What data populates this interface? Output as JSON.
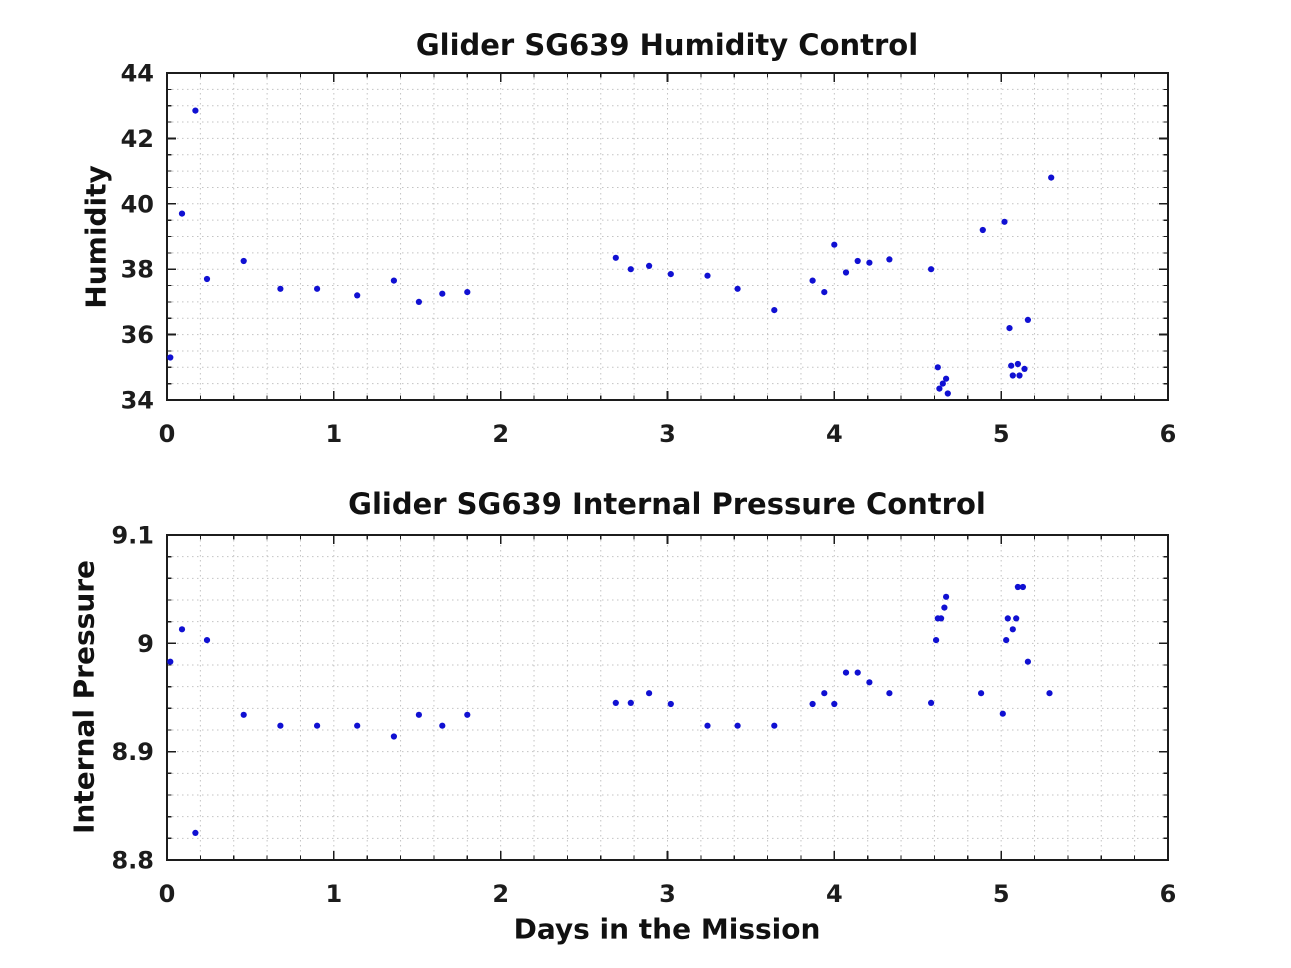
{
  "figure": {
    "background": "#ffffff",
    "axis_color": "#1c1c1c",
    "grid_color": "#c3c3c3",
    "marker_color": "#1010d2"
  },
  "chart_data": [
    {
      "type": "scatter",
      "title": "Glider SG639 Humidity Control",
      "xlabel": "",
      "ylabel": "Humidity",
      "xlim": [
        0,
        6
      ],
      "ylim": [
        34,
        44
      ],
      "xticks": [
        0,
        1,
        2,
        3,
        4,
        5,
        6
      ],
      "xtick_labels": [
        "0",
        "1",
        "2",
        "3",
        "4",
        "5",
        "6"
      ],
      "yticks": [
        34,
        36,
        38,
        40,
        42,
        44
      ],
      "ytick_labels": [
        "34",
        "36",
        "38",
        "40",
        "42",
        "44"
      ],
      "x_minor_step": 0.2,
      "y_minor_step": 0.5,
      "grid": "on",
      "points": [
        [
          0.02,
          35.3
        ],
        [
          0.09,
          39.7
        ],
        [
          0.17,
          42.85
        ],
        [
          0.24,
          37.7
        ],
        [
          0.46,
          38.25
        ],
        [
          0.68,
          37.4
        ],
        [
          0.9,
          37.4
        ],
        [
          1.14,
          37.2
        ],
        [
          1.36,
          37.65
        ],
        [
          1.51,
          37.0
        ],
        [
          1.65,
          37.25
        ],
        [
          1.8,
          37.3
        ],
        [
          2.69,
          38.35
        ],
        [
          2.78,
          38.0
        ],
        [
          2.89,
          38.1
        ],
        [
          3.02,
          37.85
        ],
        [
          3.24,
          37.8
        ],
        [
          3.42,
          37.4
        ],
        [
          3.64,
          36.75
        ],
        [
          3.87,
          37.65
        ],
        [
          3.94,
          37.3
        ],
        [
          4.0,
          38.75
        ],
        [
          4.07,
          37.9
        ],
        [
          4.14,
          38.25
        ],
        [
          4.21,
          38.2
        ],
        [
          4.33,
          38.3
        ],
        [
          4.58,
          38.0
        ],
        [
          4.62,
          35.0
        ],
        [
          4.63,
          34.35
        ],
        [
          4.65,
          34.5
        ],
        [
          4.67,
          34.65
        ],
        [
          4.68,
          34.2
        ],
        [
          4.89,
          39.2
        ],
        [
          5.02,
          39.45
        ],
        [
          5.05,
          36.2
        ],
        [
          5.06,
          35.05
        ],
        [
          5.07,
          34.75
        ],
        [
          5.1,
          35.1
        ],
        [
          5.11,
          34.75
        ],
        [
          5.14,
          34.95
        ],
        [
          5.16,
          36.45
        ],
        [
          5.3,
          40.8
        ]
      ]
    },
    {
      "type": "scatter",
      "title": "Glider SG639 Internal Pressure Control",
      "xlabel": "Days in the Mission",
      "ylabel": "Internal Pressure",
      "xlim": [
        0,
        6
      ],
      "ylim": [
        8.8,
        9.1
      ],
      "xticks": [
        0,
        1,
        2,
        3,
        4,
        5,
        6
      ],
      "xtick_labels": [
        "0",
        "1",
        "2",
        "3",
        "4",
        "5",
        "6"
      ],
      "yticks": [
        8.8,
        8.9,
        9.0,
        9.1
      ],
      "ytick_labels": [
        "8.8",
        "8.9",
        "9",
        "9.1"
      ],
      "x_minor_step": 0.2,
      "y_minor_step": 0.02,
      "grid": "on",
      "points": [
        [
          0.02,
          8.983
        ],
        [
          0.09,
          9.013
        ],
        [
          0.17,
          8.825
        ],
        [
          0.24,
          9.003
        ],
        [
          0.46,
          8.934
        ],
        [
          0.68,
          8.924
        ],
        [
          0.9,
          8.924
        ],
        [
          1.14,
          8.924
        ],
        [
          1.36,
          8.914
        ],
        [
          1.51,
          8.934
        ],
        [
          1.65,
          8.924
        ],
        [
          1.8,
          8.934
        ],
        [
          2.69,
          8.945
        ],
        [
          2.78,
          8.945
        ],
        [
          2.89,
          8.954
        ],
        [
          3.02,
          8.944
        ],
        [
          3.24,
          8.924
        ],
        [
          3.42,
          8.924
        ],
        [
          3.64,
          8.924
        ],
        [
          3.87,
          8.944
        ],
        [
          3.94,
          8.954
        ],
        [
          4.0,
          8.944
        ],
        [
          4.07,
          8.973
        ],
        [
          4.14,
          8.973
        ],
        [
          4.21,
          8.964
        ],
        [
          4.33,
          8.954
        ],
        [
          4.58,
          8.945
        ],
        [
          4.61,
          9.003
        ],
        [
          4.62,
          9.023
        ],
        [
          4.64,
          9.023
        ],
        [
          4.66,
          9.033
        ],
        [
          4.67,
          9.043
        ],
        [
          4.88,
          8.954
        ],
        [
          5.01,
          8.935
        ],
        [
          5.03,
          9.003
        ],
        [
          5.04,
          9.023
        ],
        [
          5.07,
          9.013
        ],
        [
          5.09,
          9.023
        ],
        [
          5.1,
          9.052
        ],
        [
          5.13,
          9.052
        ],
        [
          5.16,
          8.983
        ],
        [
          5.29,
          8.954
        ]
      ]
    }
  ]
}
